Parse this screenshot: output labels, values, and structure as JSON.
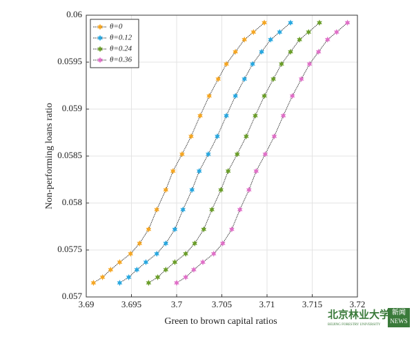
{
  "chart_data": {
    "type": "line",
    "xlabel": "Green to brown capital ratios",
    "ylabel": "Non-performing loans ratio",
    "xlim": [
      3.69,
      3.72
    ],
    "xticks": [
      3.69,
      3.695,
      3.7,
      3.705,
      3.71,
      3.715,
      3.72
    ],
    "ylim": [
      0.057,
      0.06
    ],
    "yticks": [
      0.057,
      0.0575,
      0.058,
      0.0585,
      0.059,
      0.0595,
      0.06
    ],
    "grid": true,
    "legend": "upper left",
    "series": [
      {
        "name": "θ=0",
        "color": "#f5a623",
        "x": [
          3.6908,
          3.6918,
          3.6927,
          3.6937,
          3.6949,
          3.6959,
          3.6969,
          3.6978,
          3.6988,
          3.6996,
          3.7006,
          3.7016,
          3.7026,
          3.7036,
          3.7046,
          3.7055,
          3.7065,
          3.7075,
          3.7085,
          3.7097
        ],
        "values": [
          0.05715,
          0.05721,
          0.05729,
          0.05737,
          0.05746,
          0.05757,
          0.05772,
          0.05793,
          0.05814,
          0.05834,
          0.05852,
          0.05871,
          0.05893,
          0.05914,
          0.05932,
          0.05948,
          0.05961,
          0.05974,
          0.05982,
          0.05992
        ]
      },
      {
        "name": "θ=0.12",
        "color": "#29a8e0",
        "x": [
          3.6937,
          3.6947,
          3.6956,
          3.6966,
          3.6978,
          3.6988,
          3.6998,
          3.7007,
          3.7017,
          3.7025,
          3.7035,
          3.7045,
          3.7055,
          3.7065,
          3.7075,
          3.7084,
          3.7094,
          3.7104,
          3.7114,
          3.7126
        ],
        "values": [
          0.05715,
          0.05721,
          0.05729,
          0.05737,
          0.05746,
          0.05757,
          0.05772,
          0.05793,
          0.05814,
          0.05834,
          0.05852,
          0.05871,
          0.05893,
          0.05914,
          0.05932,
          0.05948,
          0.05961,
          0.05974,
          0.05982,
          0.05992
        ]
      },
      {
        "name": "θ=0.24",
        "color": "#6b9e2a",
        "x": [
          3.6969,
          3.6979,
          3.6988,
          3.6998,
          3.701,
          3.702,
          3.703,
          3.7039,
          3.7049,
          3.7057,
          3.7067,
          3.7077,
          3.7087,
          3.7097,
          3.7107,
          3.7116,
          3.7126,
          3.7136,
          3.7146,
          3.7158
        ],
        "values": [
          0.05715,
          0.05721,
          0.05729,
          0.05737,
          0.05746,
          0.05757,
          0.05772,
          0.05793,
          0.05814,
          0.05834,
          0.05852,
          0.05871,
          0.05893,
          0.05914,
          0.05932,
          0.05948,
          0.05961,
          0.05974,
          0.05982,
          0.05992
        ]
      },
      {
        "name": "θ=0.36",
        "color": "#e070c8",
        "x": [
          3.7,
          3.701,
          3.7019,
          3.7029,
          3.7041,
          3.7051,
          3.7061,
          3.707,
          3.708,
          3.7088,
          3.7098,
          3.7108,
          3.7118,
          3.7128,
          3.7138,
          3.7147,
          3.7157,
          3.7167,
          3.7177,
          3.7189
        ],
        "values": [
          0.05715,
          0.05721,
          0.05729,
          0.05737,
          0.05746,
          0.05757,
          0.05772,
          0.05793,
          0.05814,
          0.05834,
          0.05852,
          0.05871,
          0.05893,
          0.05914,
          0.05932,
          0.05948,
          0.05961,
          0.05974,
          0.05982,
          0.05992
        ]
      }
    ]
  },
  "watermark": {
    "name": "北京林业大学",
    "subtitle": "BEIJING FORESTRY UNIVERSITY",
    "badge": "新闻",
    "badge_sub": "NEWS"
  }
}
